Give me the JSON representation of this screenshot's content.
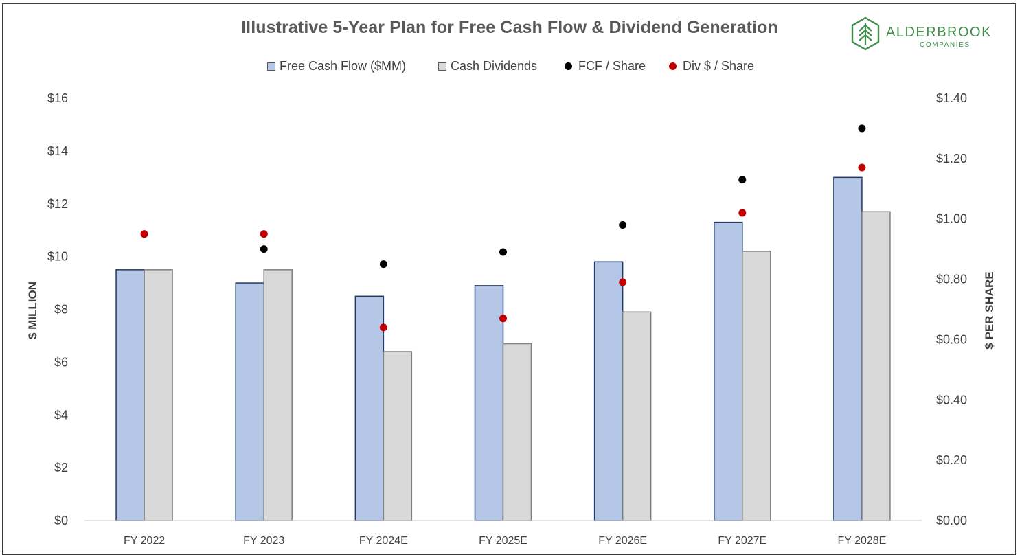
{
  "chart_data": {
    "type": "bar",
    "title": "Illustrative 5-Year Plan for Free Cash Flow & Dividend Generation",
    "categories": [
      "FY 2022",
      "FY 2023",
      "FY 2024E",
      "FY 2025E",
      "FY 2026E",
      "FY 2027E",
      "FY 2028E"
    ],
    "bar_series": [
      {
        "name": "Free Cash Flow ($MM)",
        "axis": "left",
        "color": "#b4c7e7",
        "values": [
          9.5,
          9.0,
          8.5,
          8.9,
          9.8,
          11.3,
          13.0
        ]
      },
      {
        "name": "Cash Dividends",
        "axis": "left",
        "color": "#d9d9d9",
        "values": [
          9.5,
          9.5,
          6.4,
          6.7,
          7.9,
          10.2,
          11.7
        ]
      }
    ],
    "point_series": [
      {
        "name": "FCF / Share",
        "axis": "right",
        "color": "#000000",
        "values": [
          null,
          0.9,
          0.85,
          0.89,
          0.98,
          1.13,
          1.3
        ]
      },
      {
        "name": "Div $ / Share",
        "axis": "right",
        "color": "#c00000",
        "values": [
          0.95,
          0.95,
          0.64,
          0.67,
          0.79,
          1.02,
          1.17
        ]
      }
    ],
    "y_left": {
      "label": "$ MILLION",
      "range": [
        0,
        16
      ],
      "ticks": [
        "$0",
        "$2",
        "$4",
        "$6",
        "$8",
        "$10",
        "$12",
        "$14",
        "$16"
      ]
    },
    "y_right": {
      "label": "$ PER SHARE",
      "range": [
        0,
        1.4
      ],
      "ticks": [
        "$0.00",
        "$0.20",
        "$0.40",
        "$0.60",
        "$0.80",
        "$1.00",
        "$1.20",
        "$1.40"
      ]
    },
    "grid": false,
    "legend": "top"
  },
  "logo": {
    "name": "ALDERBROOK",
    "sub": "COMPANIES",
    "color": "#3f8f4a"
  }
}
